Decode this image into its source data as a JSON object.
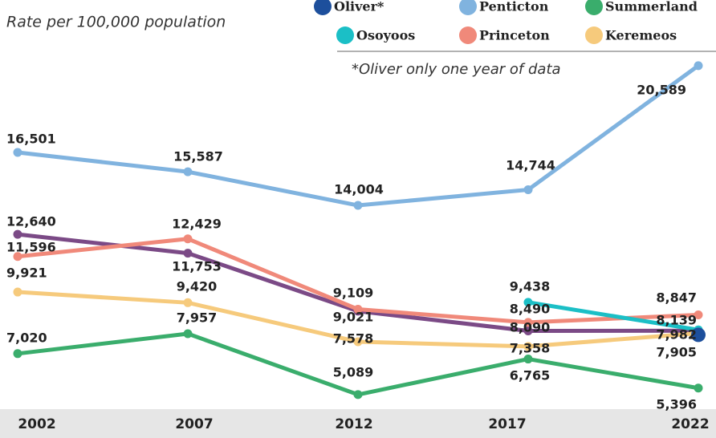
{
  "chart_data": {
    "type": "line",
    "subtitle": "Rate per 100,000 population",
    "annotation": "*Oliver only one year of data",
    "categories": [
      "2002",
      "2007",
      "2012",
      "2017",
      "2022"
    ],
    "ylim": [
      4000,
      22000
    ],
    "series": [
      {
        "name": "Oliver*",
        "color": "#1d4f9c",
        "values": [
          null,
          null,
          null,
          null,
          7905
        ],
        "value_labels": [
          null,
          null,
          null,
          null,
          "7,905"
        ]
      },
      {
        "name": "Penticton",
        "color": "#80b3df",
        "values": [
          16501,
          15587,
          14004,
          14744,
          20589
        ],
        "value_labels": [
          "16,501",
          "15,587",
          "14,004",
          "14,744",
          "20,589"
        ]
      },
      {
        "name": "Summerland",
        "color": "#3aad6c",
        "values": [
          7020,
          7957,
          5089,
          6765,
          5396
        ],
        "value_labels": [
          "7,020",
          "7,957",
          "5,089",
          "6,765",
          "5,396"
        ]
      },
      {
        "name": "Osoyoos",
        "color": "#1bbfc6",
        "values": [
          null,
          null,
          null,
          9438,
          8139
        ],
        "value_labels": [
          null,
          null,
          null,
          "9,438",
          "8,139"
        ]
      },
      {
        "name": "Princeton",
        "color": "#f0897a",
        "values": [
          11596,
          12429,
          9109,
          8490,
          8847
        ],
        "value_labels": [
          "11,596",
          "12,429",
          "9,109",
          "8,490",
          "8,847"
        ]
      },
      {
        "name": "Keremeos",
        "color": "#f6ca7c",
        "values": [
          9921,
          9420,
          7578,
          7358,
          7982
        ],
        "value_labels": [
          "9,921",
          "9,420",
          "7,578",
          "7,358",
          "7,982"
        ]
      },
      {
        "color": "#7b4a86",
        "values": [
          12640,
          11753,
          9021,
          8090,
          8100
        ],
        "value_labels": [
          "12,640",
          "11,753",
          "9,021",
          "8,090",
          null
        ]
      }
    ]
  }
}
